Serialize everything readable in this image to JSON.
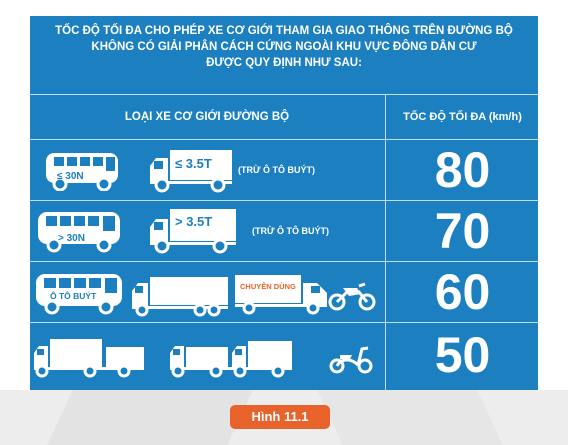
{
  "header": {
    "line1": "TỐC ĐỘ TỐI ĐA CHO PHÉP XE CƠ GIỚI THAM GIA GIAO THÔNG TRÊN ĐƯỜNG BỘ",
    "line2": "KHÔNG CÓ GIẢI PHÂN CÁCH CỨNG  NGOÀI KHU VỰC ĐÔNG DÂN CƯ",
    "line3": "ĐƯỢC QUY ĐỊNH NHƯ SAU:"
  },
  "columns": {
    "vehicle_type": "LOẠI XE CƠ GIỚI ĐƯỜNG BỘ",
    "max_speed": "TỐC ĐỘ TỐI ĐA (km/h)"
  },
  "rows": [
    {
      "bus_label": "≤ 30N",
      "truck_label": "≤ 3.5T",
      "note": "(TRỪ Ô TÔ BUÝT)",
      "speed": "80"
    },
    {
      "bus_label": "> 30N",
      "truck_label": "> 3.5T",
      "note": "(TRỪ Ô TÔ BUÝT)",
      "speed": "70"
    },
    {
      "bus_label": "Ô TÔ BUÝT",
      "special_label": "CHUYÊN DÙNG",
      "speed": "60"
    },
    {
      "speed": "50"
    }
  ],
  "caption": "Hình 11.1",
  "colors": {
    "panel": "#1b7fc0",
    "caption": "#e8622c",
    "divider": "#bfe0f3"
  },
  "icons": [
    "bus-icon",
    "truck-icon",
    "trailer-truck-icon",
    "special-truck-icon",
    "dirt-bike-icon",
    "scooter-icon"
  ]
}
